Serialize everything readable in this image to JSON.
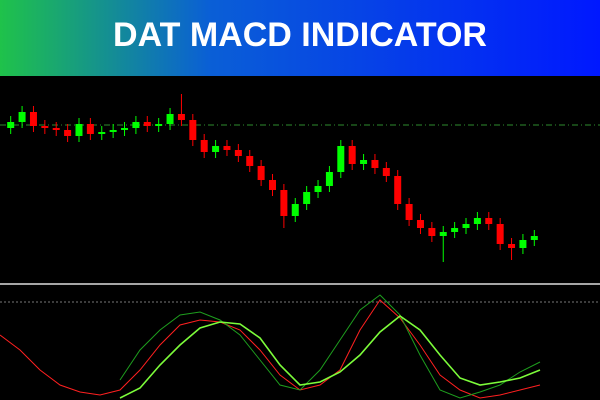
{
  "chart_data": [
    {
      "type": "candlestick",
      "title": "DAT MACD INDICATOR",
      "open": [
        76,
        79,
        84,
        77,
        76,
        75,
        72,
        78,
        73,
        74,
        75,
        76,
        79,
        77,
        78,
        83,
        80,
        70,
        64,
        67,
        65,
        62,
        57,
        50,
        45,
        32,
        38,
        44,
        47,
        54,
        67,
        58,
        60,
        56,
        52,
        38,
        30,
        26,
        22,
        24,
        26,
        28,
        31,
        28,
        18,
        16,
        20
      ],
      "high": [
        82,
        87,
        87,
        80,
        79,
        78,
        81,
        81,
        77,
        78,
        79,
        82,
        82,
        81,
        86,
        93,
        83,
        73,
        70,
        70,
        68,
        65,
        60,
        53,
        48,
        41,
        47,
        50,
        57,
        70,
        70,
        63,
        63,
        59,
        55,
        41,
        33,
        29,
        27,
        29,
        31,
        34,
        34,
        31,
        21,
        23,
        25
      ],
      "low": [
        73,
        76,
        74,
        73,
        72,
        69,
        69,
        70,
        70,
        71,
        72,
        73,
        74,
        74,
        75,
        77,
        67,
        61,
        61,
        62,
        59,
        54,
        47,
        42,
        26,
        29,
        35,
        41,
        44,
        51,
        55,
        55,
        53,
        49,
        35,
        27,
        23,
        19,
        9,
        21,
        23,
        25,
        25,
        15,
        10,
        13,
        17
      ],
      "close": [
        79,
        84,
        77,
        76,
        75,
        72,
        78,
        73,
        74,
        75,
        76,
        79,
        77,
        78,
        83,
        80,
        70,
        64,
        67,
        65,
        62,
        57,
        50,
        45,
        32,
        38,
        44,
        47,
        54,
        67,
        58,
        60,
        56,
        52,
        38,
        30,
        26,
        22,
        24,
        26,
        28,
        31,
        28,
        18,
        16,
        20,
        22
      ],
      "up_color": "#00ff00",
      "down_color": "#ff0000",
      "level": 77.5,
      "level_color": "#2e8b2e",
      "ylim": [
        0,
        100
      ]
    },
    {
      "type": "line",
      "level": 98,
      "level_color": "#777777",
      "series": [
        {
          "color": "#ff2020",
          "values": [
            65,
            50,
            30,
            15,
            8,
            5,
            10,
            30,
            55,
            75,
            80,
            78,
            70,
            50,
            25,
            10,
            15,
            30,
            70,
            100,
            82,
            55,
            25,
            10,
            2,
            5,
            10,
            15
          ]
        },
        {
          "color": "#1e9e1e",
          "values": [
            null,
            null,
            null,
            null,
            null,
            null,
            20,
            50,
            70,
            85,
            88,
            80,
            65,
            40,
            15,
            10,
            30,
            60,
            90,
            105,
            85,
            45,
            10,
            2,
            8,
            15,
            28,
            38
          ]
        },
        {
          "color": "#7cfc3a",
          "values": [
            null,
            null,
            null,
            null,
            null,
            null,
            2,
            12,
            35,
            55,
            72,
            78,
            76,
            62,
            35,
            15,
            18,
            28,
            45,
            68,
            84,
            70,
            45,
            22,
            15,
            18,
            22,
            30
          ]
        }
      ],
      "ylim": [
        0,
        110
      ]
    }
  ]
}
